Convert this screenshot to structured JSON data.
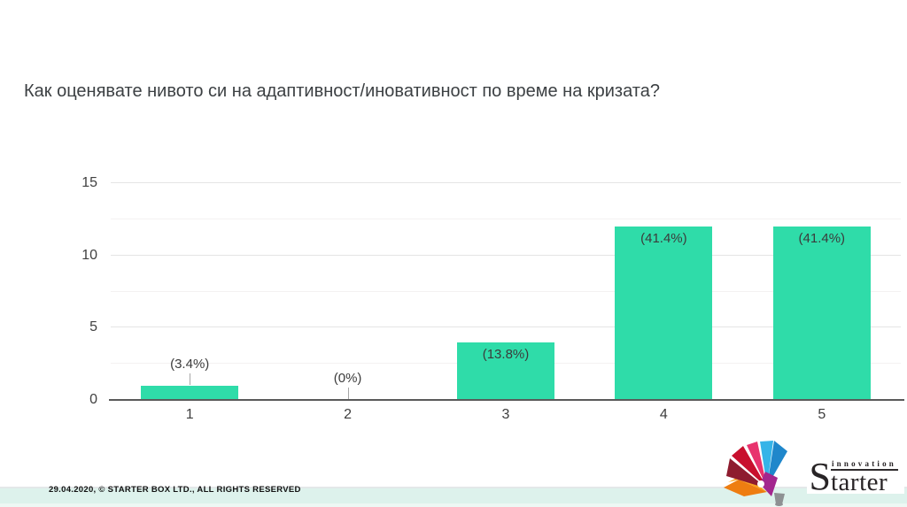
{
  "title": "Как оценявате нивото си на адаптивност/иновативност по време на кризата?",
  "chart_data": {
    "type": "bar",
    "title": "Как оценявате нивото си на адаптивност/иновативност по време на кризата?",
    "categories": [
      "1",
      "2",
      "3",
      "4",
      "5"
    ],
    "values": [
      1,
      0,
      4,
      12,
      12
    ],
    "value_labels": [
      "(3.4%)",
      "(0%)",
      "(13.8%)",
      "(41.4%)",
      "(41.4%)"
    ],
    "xlabel": "",
    "ylabel": "",
    "ylim": [
      0,
      15
    ],
    "yticks": [
      0,
      5,
      10,
      15
    ],
    "minor_gridlines": [
      2.5,
      7.5,
      12.5
    ],
    "bar_color": "#2fdca9",
    "grid": true,
    "legend": false
  },
  "footer": {
    "copyright": "29.04.2020, © STARTER BOX LTD., ALL RIGHTS RESERVED",
    "strip_color": "#ddf2ec"
  },
  "logo": {
    "top_word": "innovation",
    "initial": "S",
    "rest": "tarter",
    "petal_colors": [
      "#ee7d11",
      "#f9a11b",
      "#8e1c2f",
      "#c8102e",
      "#e8336e",
      "#35b4e8",
      "#1f87cb",
      "#a3268e",
      "#8e9193"
    ],
    "text_color": "#282426"
  }
}
